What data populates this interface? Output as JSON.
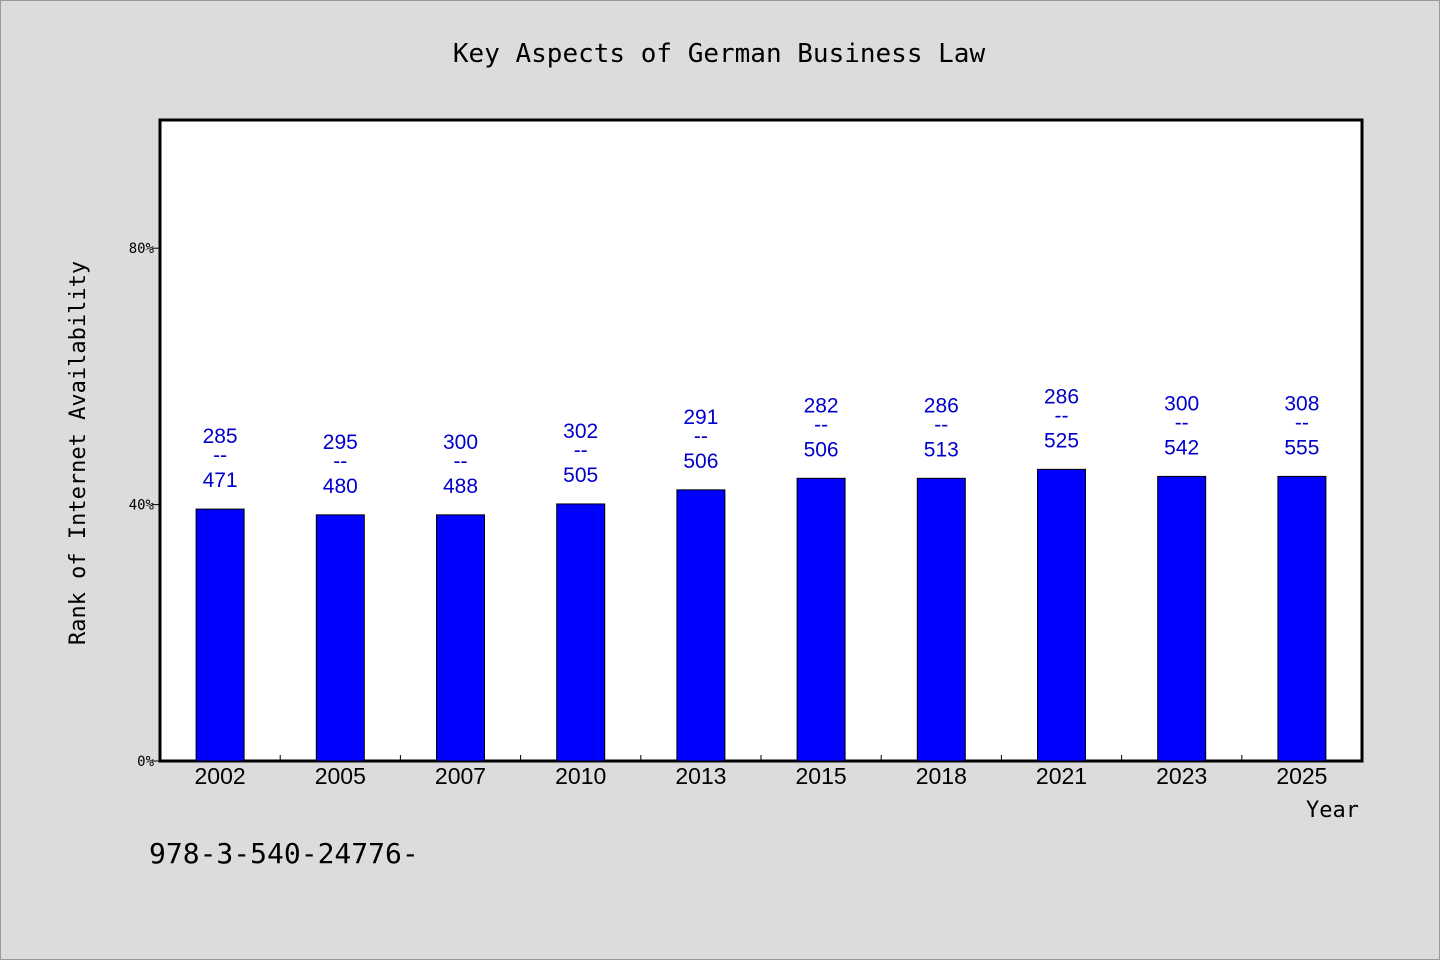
{
  "chart_data": {
    "type": "bar",
    "title": "Key Aspects of German Business Law",
    "xlabel": "Year",
    "ylabel": "Rank of Internet Availability",
    "categories": [
      "2002",
      "2005",
      "2007",
      "2010",
      "2013",
      "2015",
      "2018",
      "2021",
      "2023",
      "2025"
    ],
    "values": [
      39.3,
      38.4,
      38.4,
      40.1,
      42.3,
      44.1,
      44.1,
      45.5,
      44.4,
      44.4
    ],
    "data_labels": [
      {
        "top": "285",
        "mid": "--",
        "bottom": "471"
      },
      {
        "top": "295",
        "mid": "--",
        "bottom": "480"
      },
      {
        "top": "300",
        "mid": "--",
        "bottom": "488"
      },
      {
        "top": "302",
        "mid": "--",
        "bottom": "505"
      },
      {
        "top": "291",
        "mid": "--",
        "bottom": "506"
      },
      {
        "top": "282",
        "mid": "--",
        "bottom": "506"
      },
      {
        "top": "286",
        "mid": "--",
        "bottom": "513"
      },
      {
        "top": "286",
        "mid": "--",
        "bottom": "525"
      },
      {
        "top": "300",
        "mid": "--",
        "bottom": "542"
      },
      {
        "top": "308",
        "mid": "--",
        "bottom": "555"
      }
    ],
    "ylim": [
      0,
      100
    ],
    "yticks": [
      0,
      40,
      80
    ],
    "ytick_labels": [
      "0%",
      "40%",
      "80%"
    ],
    "grid": false,
    "colors": {
      "bar": "#0000ff",
      "label": "#0000cc",
      "background": "#dcdcdc",
      "plot_bg": "#ffffff"
    }
  },
  "footer": {
    "code": "978-3-540-24776-"
  }
}
